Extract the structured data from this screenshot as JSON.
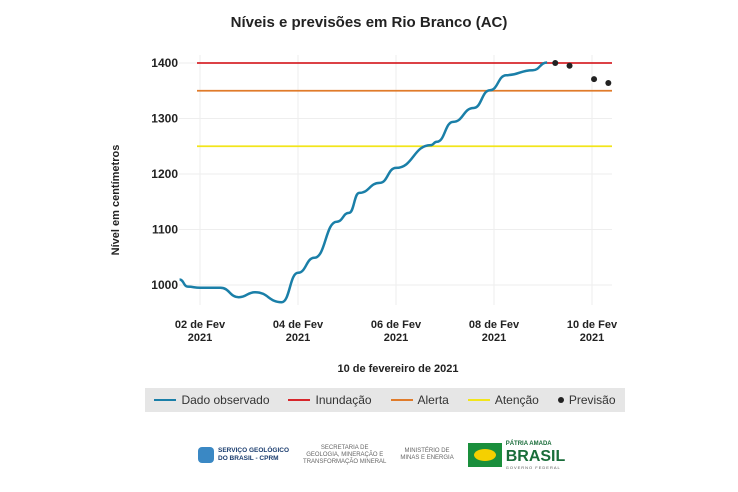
{
  "chart_data": {
    "type": "line",
    "title": "Níveis e previsões em Rio Branco (AC)",
    "xlabel": "10 de fevereiro de 2021",
    "ylabel": "Nível em centímetros",
    "ylim": [
      960,
      1410
    ],
    "yticks": [
      1000,
      1100,
      1200,
      1300,
      1400
    ],
    "xticks": [
      {
        "date": "2021-02-02",
        "label1": "02 de Fev",
        "label2": "2021"
      },
      {
        "date": "2021-02-04",
        "label1": "04 de Fev",
        "label2": "2021"
      },
      {
        "date": "2021-02-06",
        "label1": "06 de Fev",
        "label2": "2021"
      },
      {
        "date": "2021-02-08",
        "label1": "08 de Fev",
        "label2": "2021"
      },
      {
        "date": "2021-02-10",
        "label1": "10 de Fev",
        "label2": "2021"
      }
    ],
    "grid": true,
    "legend_placement": "bottom",
    "observed": {
      "name": "Dado observado",
      "color": "#1a7fa8",
      "points": [
        [
          "2021-02-01T14:00",
          1010
        ],
        [
          "2021-02-01T18:00",
          997
        ],
        [
          "2021-02-02T00:00",
          995
        ],
        [
          "2021-02-02T10:00",
          995
        ],
        [
          "2021-02-02T19:00",
          978
        ],
        [
          "2021-02-03T03:00",
          987
        ],
        [
          "2021-02-03T16:00",
          969
        ],
        [
          "2021-02-04T00:00",
          1022
        ],
        [
          "2021-02-04T08:00",
          1049
        ],
        [
          "2021-02-04T19:00",
          1114
        ],
        [
          "2021-02-05T01:00",
          1130
        ],
        [
          "2021-02-05T06:00",
          1166
        ],
        [
          "2021-02-05T16:00",
          1184
        ],
        [
          "2021-02-06T00:00",
          1211
        ],
        [
          "2021-02-06T17:00",
          1252
        ],
        [
          "2021-02-06T20:00",
          1258
        ],
        [
          "2021-02-07T04:00",
          1294
        ],
        [
          "2021-02-07T14:00",
          1319
        ],
        [
          "2021-02-07T22:00",
          1351
        ],
        [
          "2021-02-08T06:00",
          1378
        ],
        [
          "2021-02-08T19:00",
          1387
        ],
        [
          "2021-02-09T02:00",
          1401
        ]
      ]
    },
    "forecast": {
      "name": "Previsão",
      "color": "#222222",
      "points": [
        [
          "2021-02-09T06:00",
          1400
        ],
        [
          "2021-02-09T13:00",
          1395
        ],
        [
          "2021-02-10T01:00",
          1371
        ],
        [
          "2021-02-10T08:00",
          1364
        ]
      ]
    },
    "thresholds": [
      {
        "name": "Inundação",
        "value": 1400,
        "color": "#d7262b"
      },
      {
        "name": "Alerta",
        "value": 1350,
        "color": "#e07b2a"
      },
      {
        "name": "Atenção",
        "value": 1250,
        "color": "#f2e51a"
      }
    ]
  },
  "footer": {
    "sgb_line1": "SERVIÇO GEOLÓGICO",
    "sgb_line2": "DO BRASIL - CPRM",
    "sec_line1": "SECRETARIA DE",
    "sec_line2": "GEOLOGIA, MINERAÇÃO E",
    "sec_line3": "TRANSFORMAÇÃO MINERAL",
    "min_line1": "MINISTÉRIO DE",
    "min_line2": "MINAS E ENERGIA",
    "br_line1": "PÁTRIA AMADA",
    "br_line2": "BRASIL",
    "br_line3": "GOVERNO FEDERAL"
  }
}
